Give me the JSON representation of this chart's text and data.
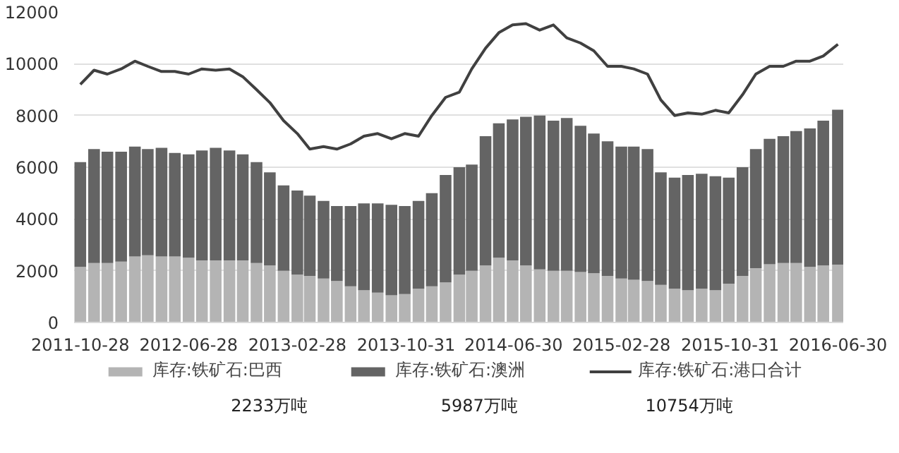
{
  "chart_data": {
    "type": "bar",
    "stacked": true,
    "x": [
      "2011-10-28",
      "2011-11-28",
      "2011-12-28",
      "2012-01-28",
      "2012-02-28",
      "2012-03-28",
      "2012-04-28",
      "2012-05-28",
      "2012-06-28",
      "2012-07-28",
      "2012-08-28",
      "2012-09-28",
      "2012-10-28",
      "2012-11-28",
      "2012-12-28",
      "2013-01-28",
      "2013-02-28",
      "2013-03-28",
      "2013-04-28",
      "2013-05-28",
      "2013-06-28",
      "2013-07-28",
      "2013-08-28",
      "2013-09-28",
      "2013-10-28",
      "2013-11-28",
      "2013-12-28",
      "2014-01-28",
      "2014-02-28",
      "2014-03-28",
      "2014-04-28",
      "2014-05-28",
      "2014-06-28",
      "2014-07-28",
      "2014-08-28",
      "2014-09-28",
      "2014-10-28",
      "2014-11-28",
      "2014-12-28",
      "2015-01-28",
      "2015-02-28",
      "2015-03-28",
      "2015-04-28",
      "2015-05-28",
      "2015-06-28",
      "2015-07-28",
      "2015-08-28",
      "2015-09-28",
      "2015-10-28",
      "2015-11-28",
      "2015-12-28",
      "2016-01-28",
      "2016-02-28",
      "2016-03-28",
      "2016-04-28",
      "2016-05-28",
      "2016-06-30"
    ],
    "series": [
      {
        "name": "库存:铁矿石:巴西",
        "color": "#b4b4b4",
        "values": [
          2150,
          2300,
          2300,
          2350,
          2550,
          2600,
          2550,
          2550,
          2500,
          2400,
          2400,
          2400,
          2400,
          2300,
          2200,
          2000,
          1850,
          1800,
          1700,
          1600,
          1400,
          1250,
          1150,
          1050,
          1100,
          1300,
          1400,
          1550,
          1850,
          2000,
          2200,
          2500,
          2400,
          2200,
          2050,
          2000,
          2000,
          1950,
          1900,
          1800,
          1700,
          1650,
          1600,
          1450,
          1300,
          1250,
          1300,
          1250,
          1500,
          1800,
          2100,
          2250,
          2300,
          2300,
          2150,
          2200,
          2233
        ]
      },
      {
        "name": "库存:铁矿石:澳洲",
        "color": "#646464",
        "values": [
          4050,
          4400,
          4300,
          4250,
          4250,
          4100,
          4200,
          4000,
          4000,
          4250,
          4350,
          4250,
          4100,
          3900,
          3600,
          3300,
          3250,
          3100,
          3000,
          2900,
          3100,
          3350,
          3450,
          3500,
          3400,
          3400,
          3600,
          4150,
          4150,
          4100,
          5000,
          5200,
          5450,
          5750,
          5950,
          5800,
          5900,
          5650,
          5400,
          5200,
          5100,
          5150,
          5100,
          4350,
          4300,
          4450,
          4450,
          4400,
          4100,
          4200,
          4600,
          4850,
          4900,
          5100,
          5350,
          5600,
          5987
        ]
      },
      {
        "name": "库存:铁矿石:港口合计",
        "type": "line",
        "color": "#404040",
        "values": [
          9200,
          9750,
          9600,
          9800,
          10100,
          9900,
          9700,
          9700,
          9600,
          9800,
          9750,
          9800,
          9500,
          9000,
          8500,
          7800,
          7300,
          6700,
          6800,
          6700,
          6900,
          7200,
          7300,
          7100,
          7300,
          7200,
          8000,
          8700,
          8900,
          9800,
          10600,
          11200,
          11500,
          11550,
          11300,
          11500,
          11000,
          10800,
          10500,
          9900,
          9900,
          9800,
          9600,
          8600,
          8000,
          8100,
          8050,
          8200,
          8100,
          8800,
          9600,
          9900,
          9900,
          10100,
          10100,
          10300,
          10754
        ]
      }
    ],
    "xlim": [
      "2011-10-14",
      "2016-07-12"
    ],
    "xticks": [
      "2011-10-28",
      "2012-06-28",
      "2013-02-28",
      "2013-10-31",
      "2014-06-30",
      "2015-02-28",
      "2015-10-31",
      "2016-06-30"
    ],
    "ylim": [
      0,
      12000
    ],
    "yticks": [
      0,
      2000,
      4000,
      6000,
      8000,
      10000,
      12000
    ],
    "grid": "y",
    "legend": "bottom",
    "annotations": [
      "2233万吨",
      "5987万吨",
      "10754万吨"
    ]
  }
}
